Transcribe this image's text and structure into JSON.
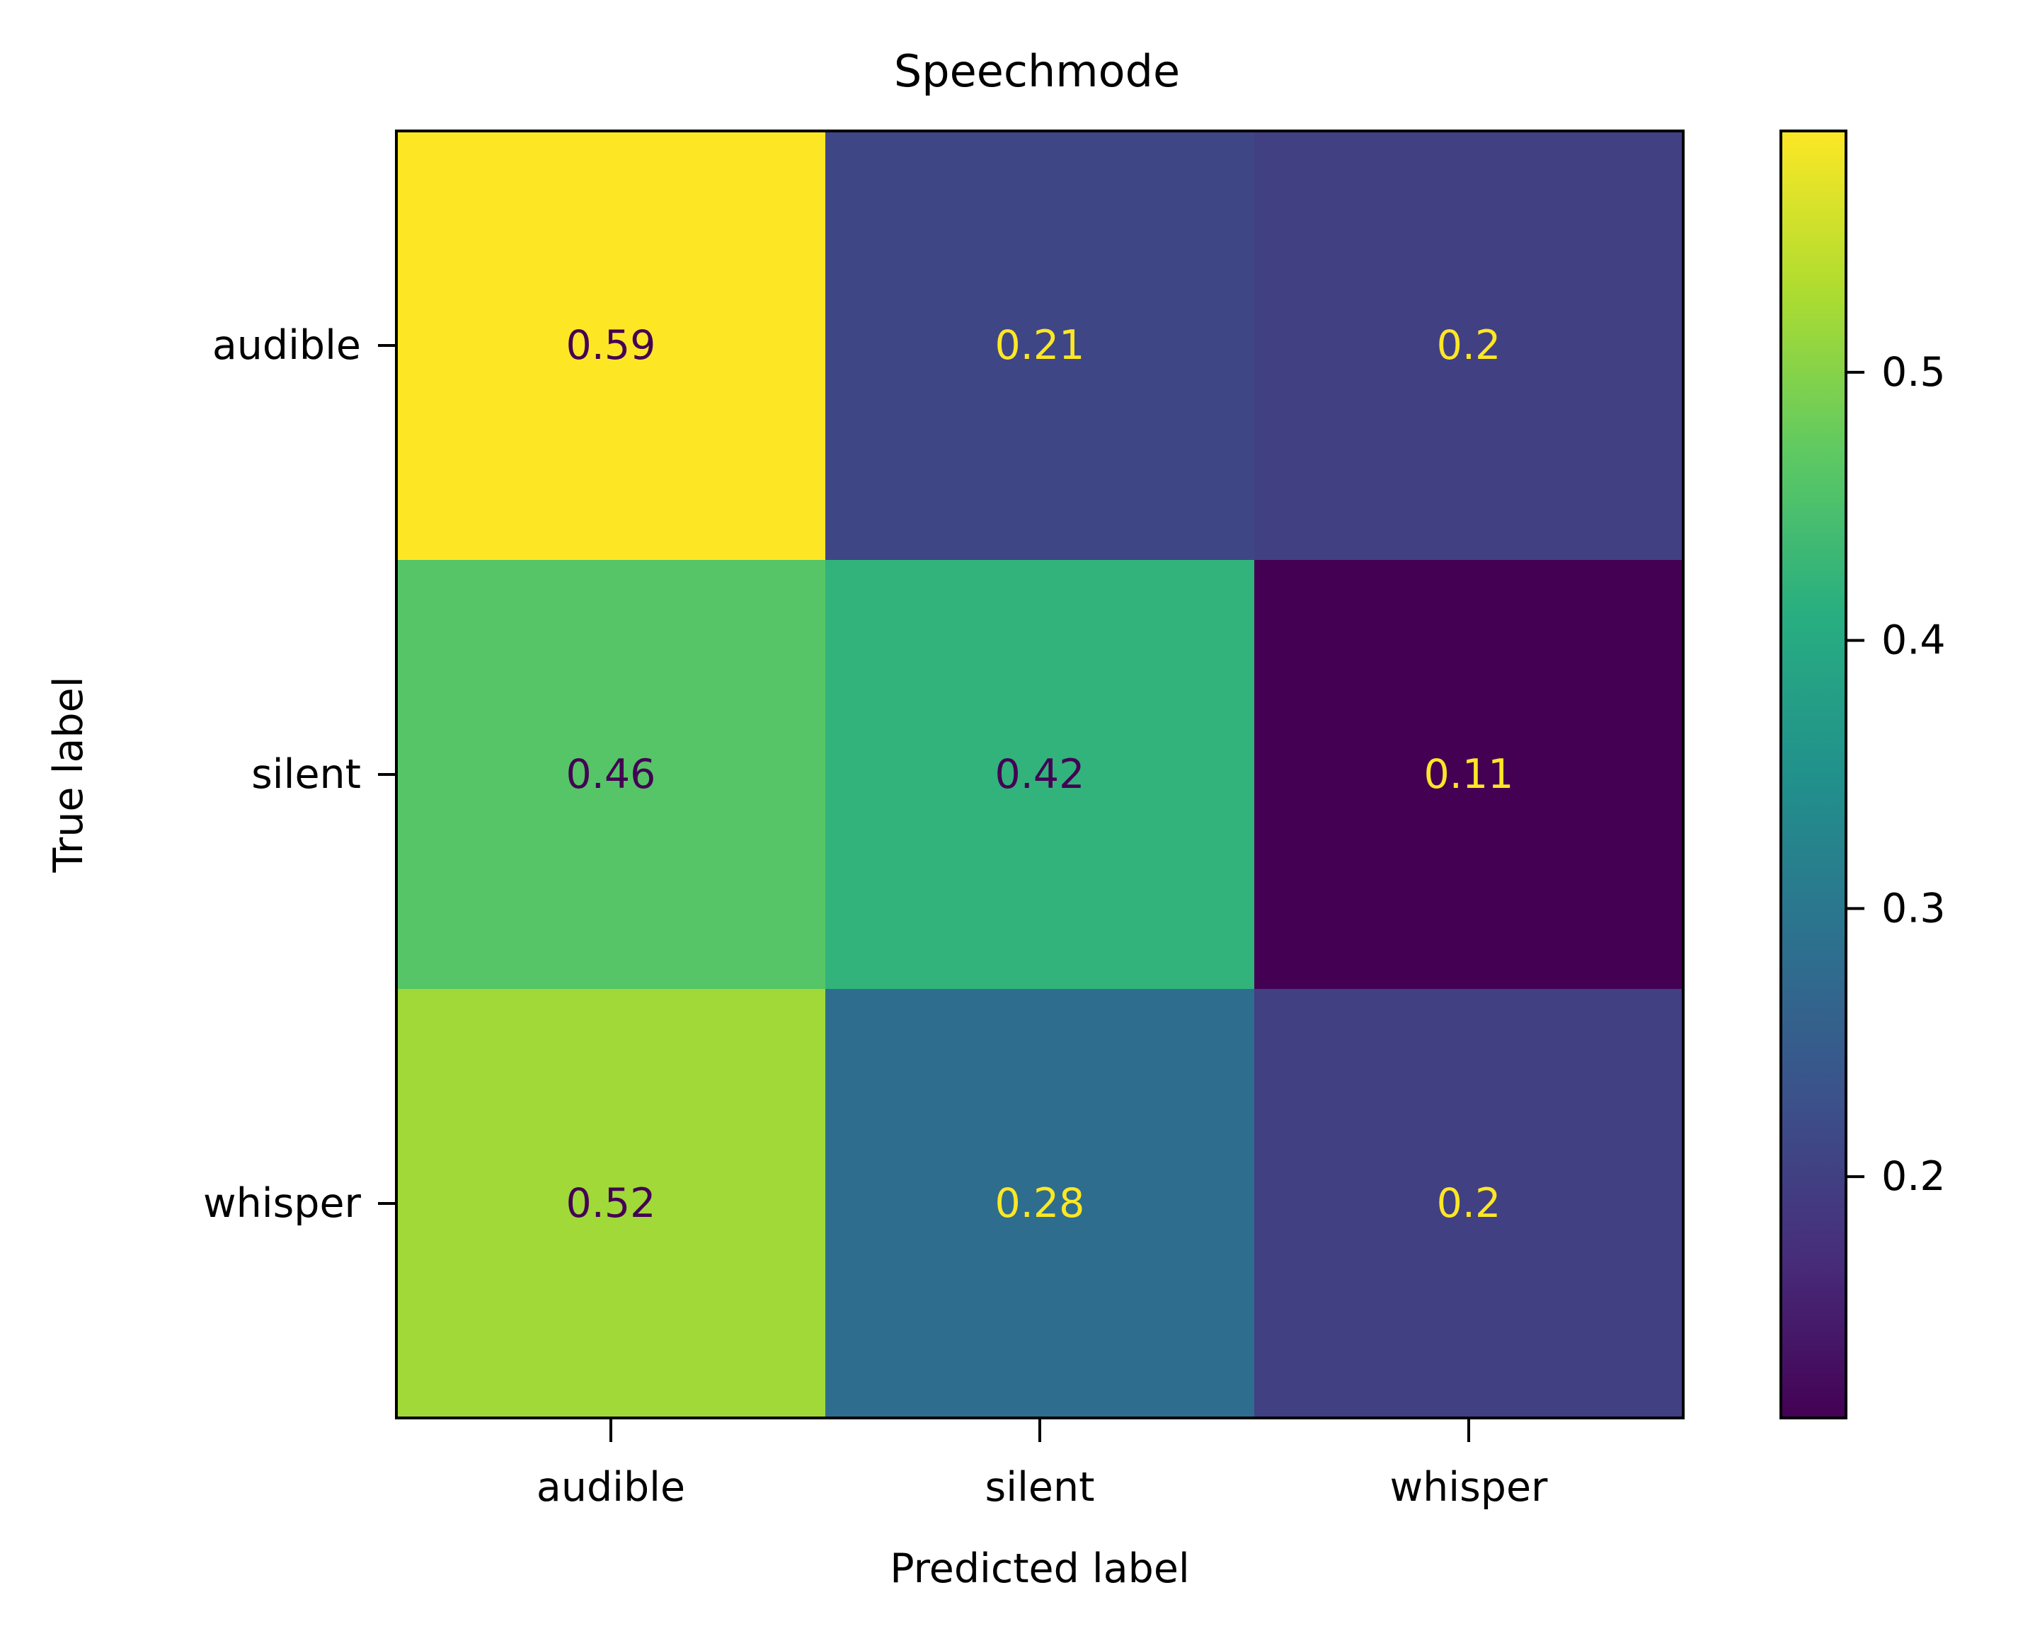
{
  "chart_data": {
    "type": "heatmap",
    "title": "Speechmode",
    "xlabel": "Predicted label",
    "ylabel": "True label",
    "x_categories": [
      "audible",
      "silent",
      "whisper"
    ],
    "y_categories": [
      "audible",
      "silent",
      "whisper"
    ],
    "values": [
      [
        0.59,
        0.21,
        0.2
      ],
      [
        0.46,
        0.42,
        0.11
      ],
      [
        0.52,
        0.28,
        0.2
      ]
    ],
    "cell_labels": [
      [
        "0.59",
        "0.21",
        "0.2"
      ],
      [
        "0.46",
        "0.42",
        "0.11"
      ],
      [
        "0.52",
        "0.28",
        "0.2"
      ]
    ],
    "colormap": "viridis",
    "color_range": [
      0.11,
      0.59
    ],
    "colorbar": {
      "ticks": [
        0.2,
        0.3,
        0.4,
        0.5
      ],
      "tick_labels": [
        "0.2",
        "0.3",
        "0.4",
        "0.5"
      ]
    },
    "text_colors": {
      "dark": "#440154",
      "light": "#fde725"
    },
    "grid": false
  }
}
